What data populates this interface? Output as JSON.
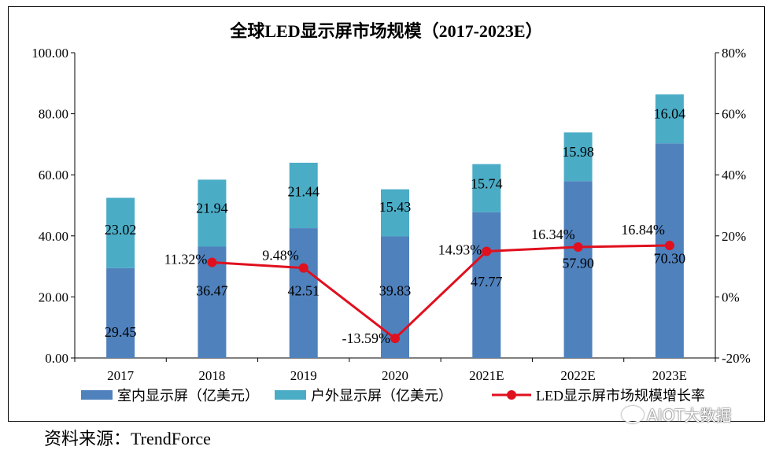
{
  "source": "资料来源：TrendForce",
  "watermark": "AIOT大数据",
  "chart_data": {
    "type": "bar",
    "stacked": true,
    "title": "全球LED显示屏市场规模（2017-2023E）",
    "categories": [
      "2017",
      "2018",
      "2019",
      "2020",
      "2021E",
      "2022E",
      "2023E"
    ],
    "series": [
      {
        "name": "室内显示屏（亿美元）",
        "type": "bar",
        "color": "#4f81bd",
        "values": [
          29.45,
          36.47,
          42.51,
          39.83,
          47.77,
          57.9,
          70.3
        ],
        "labels": [
          "29.45",
          "36.47",
          "42.51",
          "39.83",
          "47.77",
          "57.90",
          "70.30"
        ]
      },
      {
        "name": "户外显示屏（亿美元）",
        "type": "bar",
        "color": "#4bacc6",
        "values": [
          23.02,
          21.94,
          21.44,
          15.43,
          15.74,
          15.98,
          16.04
        ],
        "labels": [
          "23.02",
          "21.94",
          "21.44",
          "15.43",
          "15.74",
          "15.98",
          "16.04"
        ]
      },
      {
        "name": "LED显示屏市场规模增长率",
        "type": "line",
        "axis": "right",
        "color": "#e0101e",
        "values": [
          null,
          11.32,
          9.48,
          -13.59,
          14.93,
          16.34,
          16.84
        ],
        "labels": [
          "",
          "11.32%",
          "9.48%",
          "-13.59%",
          "14.93%",
          "16.34%",
          "16.84%"
        ]
      }
    ],
    "y_left": {
      "min": 0,
      "max": 100,
      "step": 20,
      "ticks": [
        "0.00",
        "20.00",
        "40.00",
        "60.00",
        "80.00",
        "100.00"
      ]
    },
    "y_right": {
      "min": -20,
      "max": 80,
      "step": 20,
      "ticks": [
        "-20%",
        "0%",
        "20%",
        "40%",
        "60%",
        "80%"
      ]
    },
    "grid": false,
    "legend_position": "bottom"
  }
}
